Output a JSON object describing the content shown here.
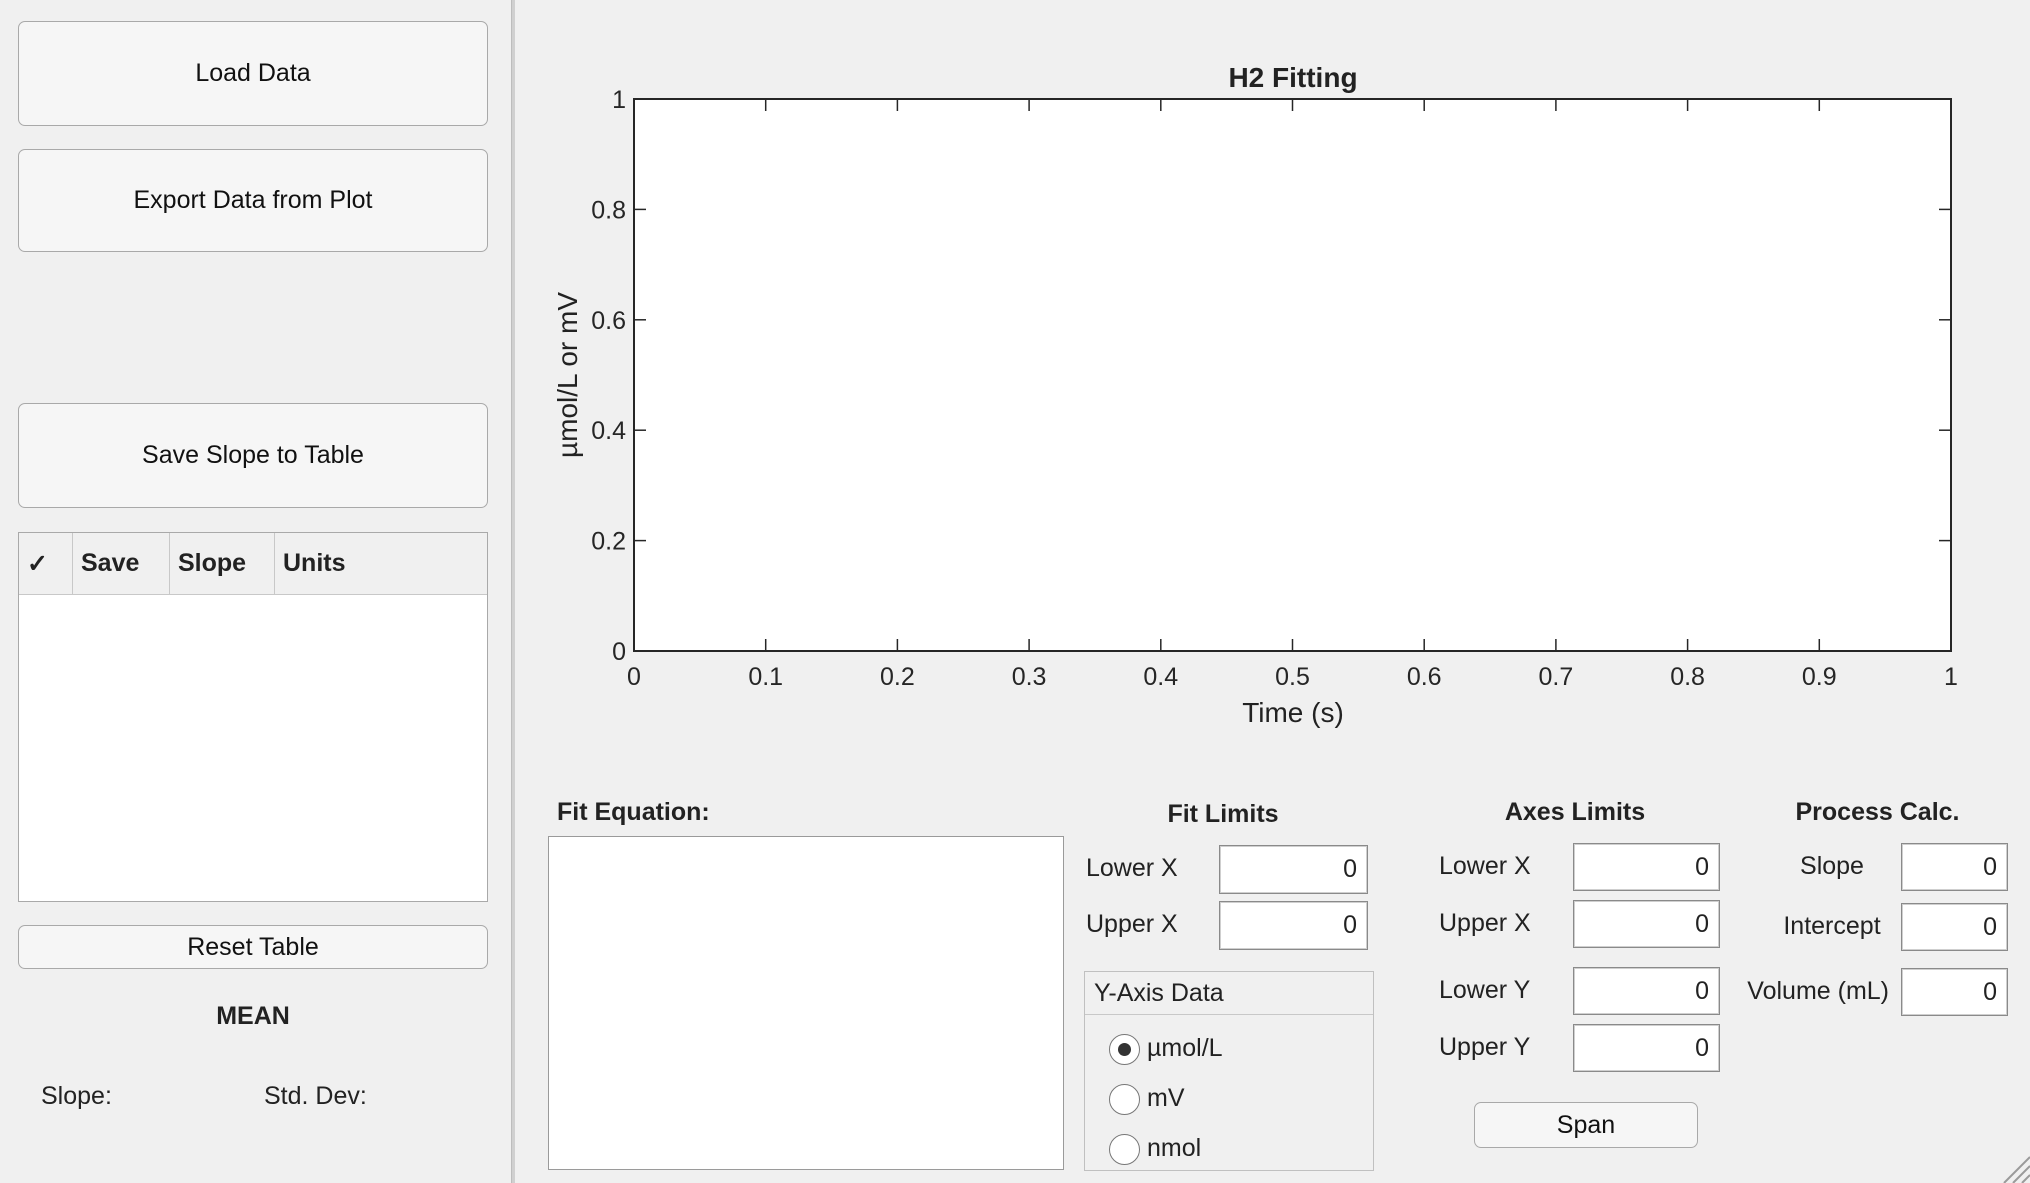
{
  "sidebar": {
    "load_label": "Load Data",
    "export_label": "Export Data from Plot",
    "save_slope_label": "Save Slope to Table",
    "table_headers": [
      "✓",
      "Save",
      "Slope",
      "Units"
    ],
    "reset_label": "Reset Table",
    "mean_label": "MEAN",
    "slope_label": "Slope:",
    "stddev_label": "Std. Dev:"
  },
  "chart_data": {
    "type": "line",
    "title": "H2 Fitting",
    "xlabel": "Time (s)",
    "ylabel": "µmol/L or mV",
    "xlim": [
      0,
      1
    ],
    "ylim": [
      0,
      1
    ],
    "xticks": [
      "0",
      "0.1",
      "0.2",
      "0.3",
      "0.4",
      "0.5",
      "0.6",
      "0.7",
      "0.8",
      "0.9",
      "1"
    ],
    "yticks": [
      "0",
      "0.2",
      "0.4",
      "0.6",
      "0.8",
      "1"
    ],
    "series": [],
    "grid": false
  },
  "fit_equation": {
    "label": "Fit Equation:"
  },
  "fit_limits": {
    "title": "Fit Limits",
    "lower_x_label": "Lower X",
    "lower_x_value": "0",
    "upper_x_label": "Upper X",
    "upper_x_value": "0"
  },
  "y_axis_data": {
    "title": "Y-Axis Data",
    "options": [
      "µmol/L",
      "mV",
      "nmol"
    ],
    "selected": "µmol/L"
  },
  "axes_limits": {
    "title": "Axes Limits",
    "lower_x_label": "Lower X",
    "lower_x_value": "0",
    "upper_x_label": "Upper X",
    "upper_x_value": "0",
    "lower_y_label": "Lower Y",
    "lower_y_value": "0",
    "upper_y_label": "Upper Y",
    "upper_y_value": "0",
    "span_label": "Span"
  },
  "process_calc": {
    "title": "Process Calc.",
    "slope_label": "Slope",
    "slope_value": "0",
    "intercept_label": "Intercept",
    "intercept_value": "0",
    "volume_label": "Volume (mL)",
    "volume_value": "0"
  }
}
